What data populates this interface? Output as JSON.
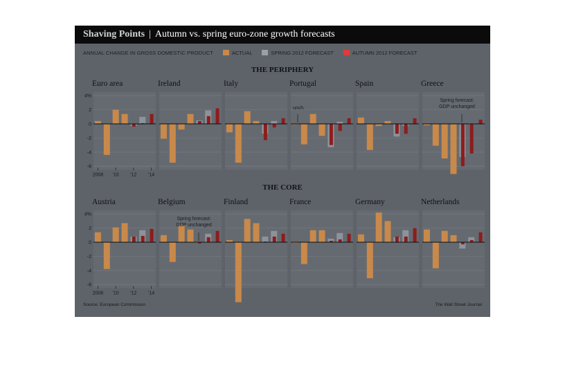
{
  "title": {
    "brand": "Shaving Points",
    "separator": "|",
    "text": "Autumn vs. spring euro-zone growth forecasts"
  },
  "legend": {
    "label": "ANNUAL CHANGE IN GROSS DOMESTIC PRODUCT",
    "items": [
      {
        "label": "ACTUAL",
        "color": "#c8894a"
      },
      {
        "label": "SPRING 2012 FORECAST",
        "color": "#9aa0a6"
      },
      {
        "label": "AUTUMN 2012 FORECAST",
        "color": "#e23a36"
      }
    ]
  },
  "sections": {
    "periphery": "THE PERIPHERY",
    "core": "THE CORE"
  },
  "source": "Source: European Commission",
  "credit": "The Wall Street Journal",
  "colors": {
    "actual": "#c8894a",
    "spring": "#8d939a",
    "autumn": "#8e1c1c",
    "background": "#5e636a"
  },
  "chart_data": {
    "type": "bar",
    "units": "%",
    "years": [
      2008,
      2009,
      2010,
      2011,
      2012,
      2013,
      2014
    ],
    "x_tick_labels": [
      "2008",
      "'10",
      "'12",
      "'14"
    ],
    "y_tick_labels": [
      "4%",
      "2",
      "0",
      "-2",
      "-4",
      "-6"
    ],
    "ylim": [
      -6.5,
      4.5
    ],
    "panels": [
      {
        "group": "periphery",
        "name": "Euro area",
        "actual": [
          0.4,
          -4.4,
          2.0,
          1.4
        ],
        "spring": [
          -0.3,
          1.0,
          null
        ],
        "autumn": [
          -0.4,
          0.1,
          1.4
        ],
        "note": ""
      },
      {
        "group": "periphery",
        "name": "Ireland",
        "actual": [
          -2.1,
          -5.5,
          -0.8,
          1.4
        ],
        "spring": [
          0.5,
          1.9,
          null
        ],
        "autumn": [
          0.4,
          1.1,
          2.2
        ],
        "note": ""
      },
      {
        "group": "periphery",
        "name": "Italy",
        "actual": [
          -1.2,
          -5.5,
          1.8,
          0.4
        ],
        "spring": [
          -1.4,
          0.4,
          null
        ],
        "autumn": [
          -2.3,
          -0.5,
          0.8
        ],
        "note": ""
      },
      {
        "group": "periphery",
        "name": "Portugal",
        "actual": [
          0.0,
          -2.9,
          1.4,
          -1.7
        ],
        "spring": [
          -3.3,
          0.3,
          null
        ],
        "autumn": [
          -3.0,
          -1.0,
          0.8
        ],
        "note": "unch."
      },
      {
        "group": "periphery",
        "name": "Spain",
        "actual": [
          0.9,
          -3.7,
          -0.3,
          0.4
        ],
        "spring": [
          -1.8,
          -0.3,
          null
        ],
        "autumn": [
          -1.4,
          -1.4,
          0.8
        ],
        "note": ""
      },
      {
        "group": "periphery",
        "name": "Greece",
        "actual": [
          -0.2,
          -3.1,
          -4.9,
          -7.1
        ],
        "spring": [
          -4.7,
          0.0,
          null
        ],
        "autumn": [
          -6.0,
          -4.2,
          0.6
        ],
        "note": "Spring forecast:\nGDP unchanged"
      },
      {
        "group": "core",
        "name": "Austria",
        "actual": [
          1.4,
          -3.8,
          2.1,
          2.7
        ],
        "spring": [
          0.8,
          1.7,
          null
        ],
        "autumn": [
          0.8,
          0.9,
          1.9
        ],
        "note": ""
      },
      {
        "group": "core",
        "name": "Belgium",
        "actual": [
          1.0,
          -2.8,
          2.4,
          1.8
        ],
        "spring": [
          0.0,
          1.2,
          null
        ],
        "autumn": [
          -0.2,
          0.7,
          1.6
        ],
        "note": "Spring forecast:\nGDP unchanged"
      },
      {
        "group": "core",
        "name": "Finland",
        "actual": [
          0.3,
          -8.5,
          3.3,
          2.7
        ],
        "spring": [
          0.8,
          1.6,
          null
        ],
        "autumn": [
          0.1,
          0.8,
          1.2
        ],
        "note": ""
      },
      {
        "group": "core",
        "name": "France",
        "actual": [
          -0.1,
          -3.1,
          1.7,
          1.7
        ],
        "spring": [
          0.5,
          1.3,
          null
        ],
        "autumn": [
          0.2,
          0.4,
          1.2
        ],
        "note": ""
      },
      {
        "group": "core",
        "name": "Germany",
        "actual": [
          1.1,
          -5.1,
          4.2,
          3.0
        ],
        "spring": [
          0.7,
          1.7,
          null
        ],
        "autumn": [
          0.8,
          0.8,
          2.0
        ],
        "note": ""
      },
      {
        "group": "core",
        "name": "Netherlands",
        "actual": [
          1.8,
          -3.7,
          1.6,
          1.0
        ],
        "spring": [
          -0.9,
          0.7,
          null
        ],
        "autumn": [
          -0.3,
          0.3,
          1.4
        ],
        "note": ""
      }
    ]
  }
}
